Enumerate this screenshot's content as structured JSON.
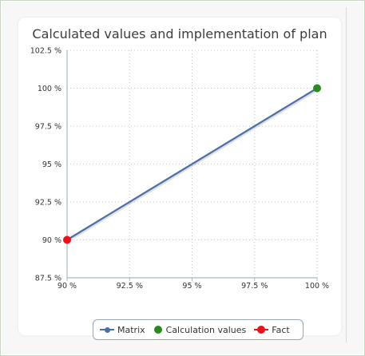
{
  "chart_data": {
    "type": "line",
    "title": "Calculated values and implementation of plan",
    "xlabel": "",
    "ylabel": "",
    "xlim": [
      90,
      100
    ],
    "ylim": [
      87.5,
      102.5
    ],
    "x_ticks": [
      90,
      92.5,
      95,
      97.5,
      100
    ],
    "y_ticks": [
      87.5,
      90,
      92.5,
      95,
      97.5,
      100,
      102.5
    ],
    "x_tick_labels": [
      "90 %",
      "92.5 %",
      "95 %",
      "97.5 %",
      "100 %"
    ],
    "y_tick_labels": [
      "87.5 %",
      "90 %",
      "92.5 %",
      "95 %",
      "97.5 %",
      "100 %",
      "102.5 %"
    ],
    "grid": true,
    "legend_position": "bottom",
    "series": [
      {
        "name": "Matrix",
        "kind": "line",
        "color": "#4a6fa5",
        "x": [
          90,
          100
        ],
        "y": [
          90,
          100
        ]
      },
      {
        "name": "Calculation values",
        "kind": "scatter",
        "color": "#2a8a1f",
        "x": [
          100
        ],
        "y": [
          100
        ]
      },
      {
        "name": "Fact",
        "kind": "scatter",
        "color": "#e8121b",
        "x": [
          90
        ],
        "y": [
          90
        ]
      }
    ]
  }
}
